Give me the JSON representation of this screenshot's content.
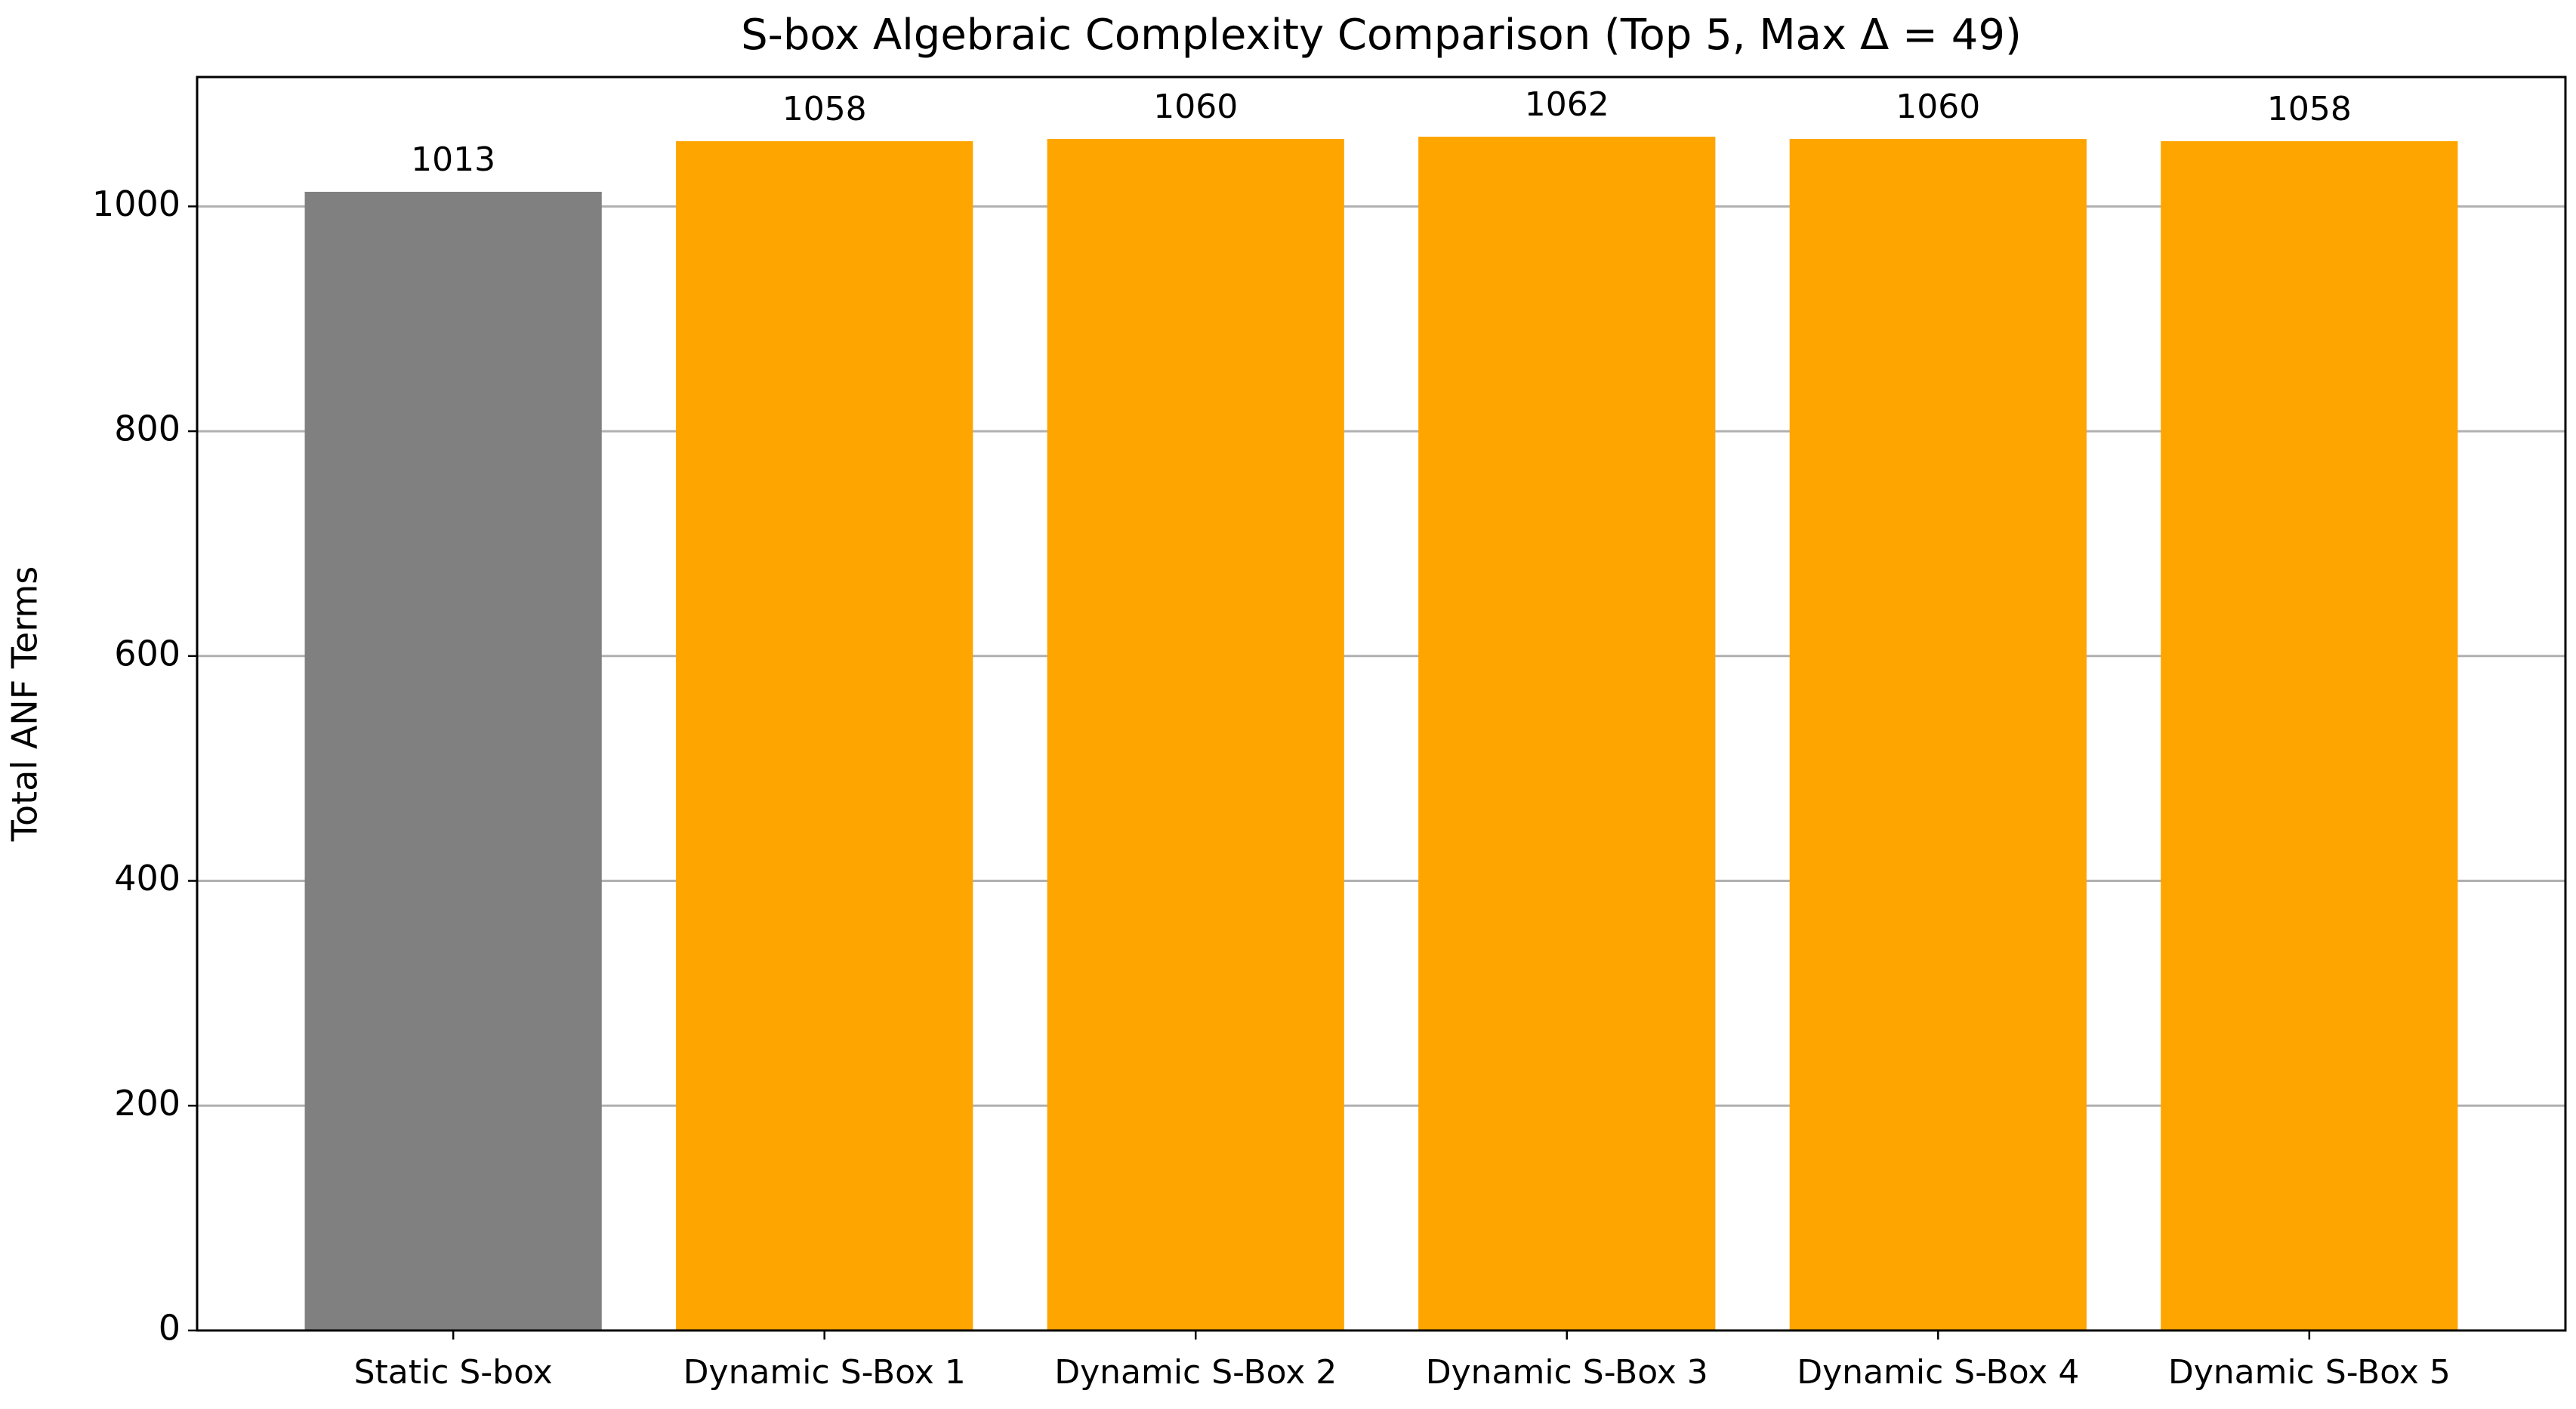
{
  "chart_data": {
    "type": "bar",
    "title": "S-box Algebraic Complexity Comparison (Top 5, Max Δ = 49)",
    "y_label": "Total ANF Terms",
    "categories": [
      "Static S-box",
      "Dynamic S-Box 1",
      "Dynamic S-Box 2",
      "Dynamic S-Box 3",
      "Dynamic S-Box 4",
      "Dynamic S-Box 5"
    ],
    "values": [
      1013,
      1058,
      1060,
      1062,
      1060,
      1058
    ],
    "colors": [
      "#808080",
      "#ffa500",
      "#ffa500",
      "#ffa500",
      "#ffa500",
      "#ffa500"
    ],
    "ylim": [
      0,
      1115.1
    ],
    "yticks": [
      0,
      200,
      400,
      600,
      800,
      1000
    ],
    "grid": true
  }
}
